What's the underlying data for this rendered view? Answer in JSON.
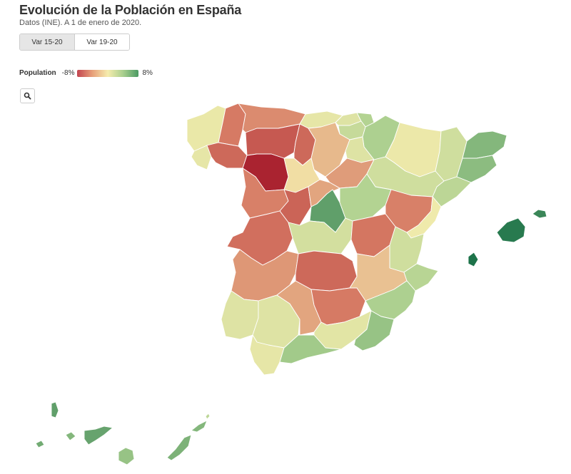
{
  "header": {
    "title": "Evolución de la Población en España",
    "subtitle": "Datos (INE). A 1 de enero de 2020."
  },
  "tabs": [
    {
      "label": "Var 15-20",
      "active": true
    },
    {
      "label": "Var 19-20",
      "active": false
    }
  ],
  "legend": {
    "title": "Population",
    "min_label": "-8%",
    "max_label": "8%",
    "min_color": "#c2444f",
    "mid_color": "#f5ecad",
    "max_color": "#4b9a63"
  },
  "toolbar": {
    "search_icon": "search-icon"
  },
  "map": {
    "regions": [
      {
        "id": "a-coruna",
        "value": 0.6
      },
      {
        "id": "lugo",
        "value": -4.0
      },
      {
        "id": "pontevedra",
        "value": 0.8
      },
      {
        "id": "ourense",
        "value": -4.8
      },
      {
        "id": "asturias",
        "value": -3.4
      },
      {
        "id": "cantabria",
        "value": 0.8
      },
      {
        "id": "bizkaia",
        "value": 1.2
      },
      {
        "id": "gipuzkoa",
        "value": 3.5
      },
      {
        "id": "araba",
        "value": 2.5
      },
      {
        "id": "navarra",
        "value": 3.8
      },
      {
        "id": "leon",
        "value": -5.5
      },
      {
        "id": "palencia",
        "value": -4.8
      },
      {
        "id": "burgos",
        "value": -1.8
      },
      {
        "id": "zamora",
        "value": -8.0
      },
      {
        "id": "valladolid",
        "value": -0.5
      },
      {
        "id": "soria",
        "value": -2.8
      },
      {
        "id": "la-rioja",
        "value": 1.2
      },
      {
        "id": "huesca",
        "value": 0.5
      },
      {
        "id": "lleida",
        "value": 2.0
      },
      {
        "id": "girona",
        "value": 5.0
      },
      {
        "id": "barcelona",
        "value": 4.8
      },
      {
        "id": "tarragona",
        "value": 3.0
      },
      {
        "id": "zaragoza",
        "value": 2.0
      },
      {
        "id": "teruel",
        "value": -3.8
      },
      {
        "id": "castellon",
        "value": 0.3
      },
      {
        "id": "salamanca",
        "value": -3.8
      },
      {
        "id": "avila",
        "value": -5.0
      },
      {
        "id": "segovia",
        "value": -2.5
      },
      {
        "id": "madrid",
        "value": 6.0
      },
      {
        "id": "guadalajara",
        "value": 3.5
      },
      {
        "id": "caceres",
        "value": -4.5
      },
      {
        "id": "toledo",
        "value": 1.8
      },
      {
        "id": "cuenca",
        "value": -4.2
      },
      {
        "id": "valencia",
        "value": 2.0
      },
      {
        "id": "badajoz",
        "value": -3.0
      },
      {
        "id": "ciudad-real",
        "value": -4.8
      },
      {
        "id": "albacete",
        "value": -1.5
      },
      {
        "id": "alicante",
        "value": 3.2
      },
      {
        "id": "huelva",
        "value": 1.2
      },
      {
        "id": "sevilla",
        "value": 1.2
      },
      {
        "id": "cordoba",
        "value": -2.5
      },
      {
        "id": "jaen",
        "value": -4.0
      },
      {
        "id": "granada",
        "value": 1.0
      },
      {
        "id": "almeria",
        "value": 4.5
      },
      {
        "id": "murcia",
        "value": 3.8
      },
      {
        "id": "cadiz",
        "value": 0.8
      },
      {
        "id": "malaga",
        "value": 4.2
      },
      {
        "id": "mallorca",
        "value": 7.5
      },
      {
        "id": "menorca",
        "value": 7.0
      },
      {
        "id": "ibiza",
        "value": 7.8
      },
      {
        "id": "la-palma",
        "value": 6.0
      },
      {
        "id": "el-hierro",
        "value": 5.5
      },
      {
        "id": "la-gomera",
        "value": 5.0
      },
      {
        "id": "tenerife",
        "value": 5.8
      },
      {
        "id": "gran-canaria",
        "value": 4.5
      },
      {
        "id": "fuerteventura",
        "value": 5.2
      },
      {
        "id": "lanzarote",
        "value": 5.0
      },
      {
        "id": "la-graciosa",
        "value": 3.0
      }
    ]
  }
}
